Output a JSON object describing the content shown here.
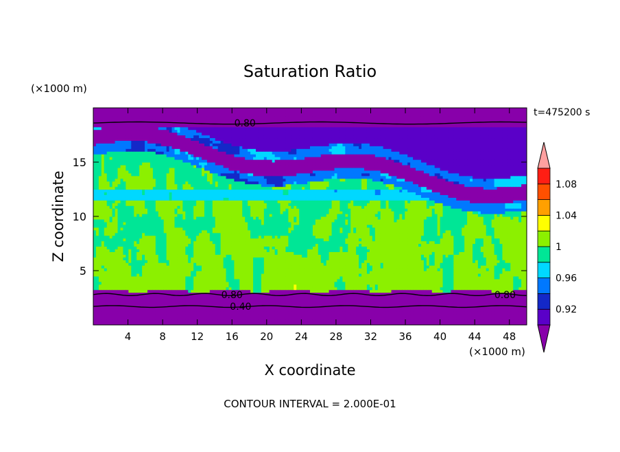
{
  "chart_data": {
    "type": "contour",
    "title": "Saturation Ratio",
    "xlabel": "X coordinate",
    "ylabel": "Z coordinate",
    "x_unit_label": "(×1000 m)",
    "y_unit_label": "(×1000 m)",
    "time_label": "t=475200 s",
    "footer": "CONTOUR INTERVAL = 2.000E-01",
    "xlim": [
      0,
      50
    ],
    "ylim": [
      0,
      20
    ],
    "x_ticks": [
      4,
      8,
      12,
      16,
      20,
      24,
      28,
      32,
      36,
      40,
      44,
      48
    ],
    "y_ticks": [
      5,
      10,
      15
    ],
    "contour_labels": [
      {
        "text": "0.80",
        "x": 17.5,
        "z": 18.6
      },
      {
        "text": "0.80",
        "x": 16,
        "z": 2.8
      },
      {
        "text": "0.80",
        "x": 47.5,
        "z": 2.8
      },
      {
        "text": "0.40",
        "x": 17,
        "z": 1.7
      }
    ],
    "colorbar": {
      "levels": [
        0.9,
        0.92,
        0.94,
        0.96,
        0.98,
        1.0,
        1.02,
        1.04,
        1.06,
        1.08,
        1.1
      ],
      "tick_labels": [
        "0.92",
        "0.96",
        "1",
        "1.04",
        "1.08"
      ],
      "colors": [
        "#8800aa",
        "#5a00c8",
        "#1428c8",
        "#0078ff",
        "#00d8ff",
        "#00e696",
        "#8cf000",
        "#ffff00",
        "#ffa000",
        "#ff5000",
        "#ff1e14",
        "#ffa0a0"
      ]
    }
  }
}
